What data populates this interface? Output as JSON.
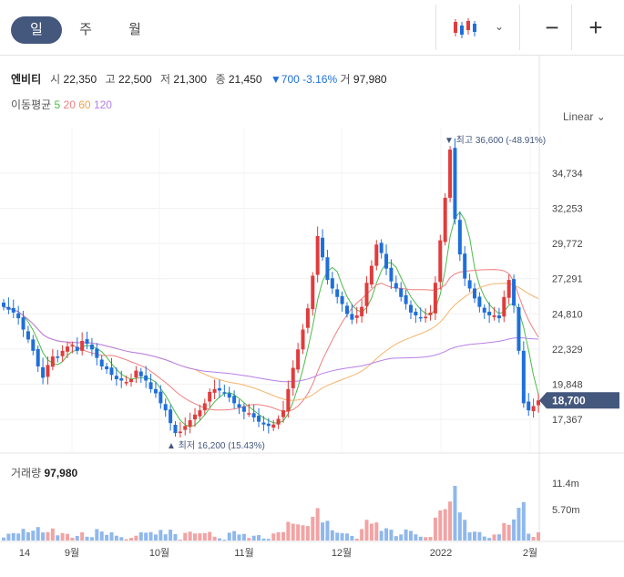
{
  "tabs": {
    "day": "일",
    "week": "주",
    "month": "월"
  },
  "toolbar": {
    "chart_type_icon": "candlestick-icon",
    "zoom_out": "−",
    "zoom_in": "+",
    "chevron": "⌄"
  },
  "quote": {
    "name": "엔비티",
    "open_label": "시",
    "open": "22,350",
    "high_label": "고",
    "high": "22,500",
    "low_label": "저",
    "low": "21,300",
    "close_label": "종",
    "close": "21,450",
    "change": "▼700 -3.16%",
    "volume_label": "거",
    "volume": "97,980"
  },
  "ma": {
    "label": "이동평균",
    "p5": "5",
    "p20": "20",
    "p60": "60",
    "p120": "120"
  },
  "scale_label": "Linear",
  "colors": {
    "up": "#e03c3c",
    "down": "#1e6fd9",
    "ma5": "#4dbb4d",
    "ma20": "#f07f7f",
    "ma60": "#f4b46d",
    "ma120": "#b77fe8",
    "badge": "#44577d"
  },
  "chart_data": {
    "type": "candlestick",
    "y_ticks": [
      "34,734",
      "32,253",
      "29,772",
      "27,291",
      "24,810",
      "22,329",
      "19,848",
      "17,367"
    ],
    "x_labels": [
      "14",
      "9월",
      "10월",
      "11월",
      "12월",
      "2022",
      "2월"
    ],
    "max_label": "▼ 최고 36,600 (-48.91%)",
    "min_label": "▲ 최저 16,200 (15.43%)",
    "last_price": "18,700",
    "volume": {
      "title": "거래량",
      "value": "97,980",
      "y_ticks": [
        "11.4m",
        "5.70m"
      ]
    },
    "closes": [
      25300,
      25100,
      24900,
      24500,
      23700,
      23000,
      22200,
      21100,
      20300,
      21200,
      21800,
      21700,
      22200,
      22500,
      22600,
      22200,
      22900,
      22700,
      22300,
      21700,
      21100,
      20900,
      20500,
      20200,
      20100,
      20000,
      20200,
      20800,
      20400,
      20100,
      19500,
      19200,
      18500,
      18000,
      17100,
      16400,
      16500,
      16900,
      17300,
      17700,
      18000,
      18500,
      19300,
      19500,
      19400,
      19200,
      18900,
      18500,
      18200,
      17900,
      17800,
      17500,
      17200,
      17000,
      16900,
      17000,
      17400,
      18000,
      19500,
      21000,
      22300,
      23700,
      25200,
      27500,
      30300,
      28800,
      27200,
      26600,
      26000,
      25500,
      24800,
      24400,
      24700,
      25300,
      27000,
      28200,
      29700,
      29100,
      28000,
      27100,
      26600,
      26000,
      25500,
      24900,
      24700,
      24500,
      24600,
      24900,
      27000,
      30000,
      33000,
      36400,
      31500,
      29000,
      27300,
      26600,
      25900,
      25300,
      24900,
      24700,
      24700,
      24500,
      26000,
      27200,
      25400,
      22200,
      18500,
      18000,
      18300,
      18700
    ]
  }
}
